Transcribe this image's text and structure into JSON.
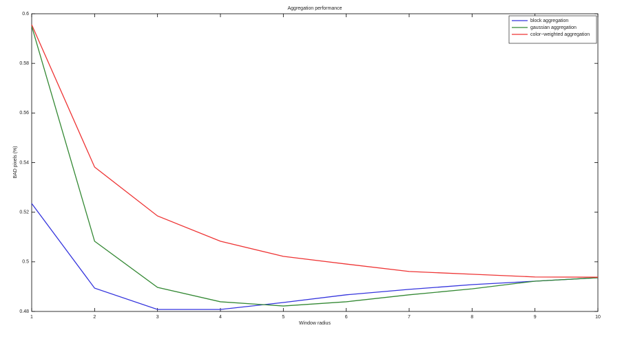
{
  "chart_data": {
    "type": "line",
    "title": "Aggregation performance",
    "x_label": "Window radius",
    "y_label": "BAD pixels (%)",
    "x": [
      1,
      2,
      3,
      4,
      5,
      6,
      7,
      8,
      9,
      10
    ],
    "series": [
      {
        "name": "block aggregation",
        "color": "#3333dd",
        "values": [
          0.5235,
          0.4894,
          0.4808,
          0.4808,
          0.4836,
          0.4867,
          0.4889,
          0.4908,
          0.4922,
          0.4936
        ]
      },
      {
        "name": "gaussian aggregation",
        "color": "#338833",
        "values": [
          0.595,
          0.5083,
          0.4897,
          0.4839,
          0.4822,
          0.4839,
          0.4867,
          0.4891,
          0.4922,
          0.4936
        ]
      },
      {
        "name": "color−weighted aggregation",
        "color": "#ee3333",
        "values": [
          0.5956,
          0.5382,
          0.5185,
          0.5083,
          0.5022,
          0.4991,
          0.4961,
          0.495,
          0.4939,
          0.4938
        ]
      }
    ],
    "xlim": [
      1,
      10
    ],
    "xticks": [
      1,
      2,
      3,
      4,
      5,
      6,
      7,
      8,
      9,
      10
    ],
    "ylim": [
      0.48,
      0.6
    ],
    "yticks": [
      0.48,
      0.5,
      0.52,
      0.54,
      0.56,
      0.58,
      0.6
    ],
    "legend": "top-right",
    "grid": false
  }
}
